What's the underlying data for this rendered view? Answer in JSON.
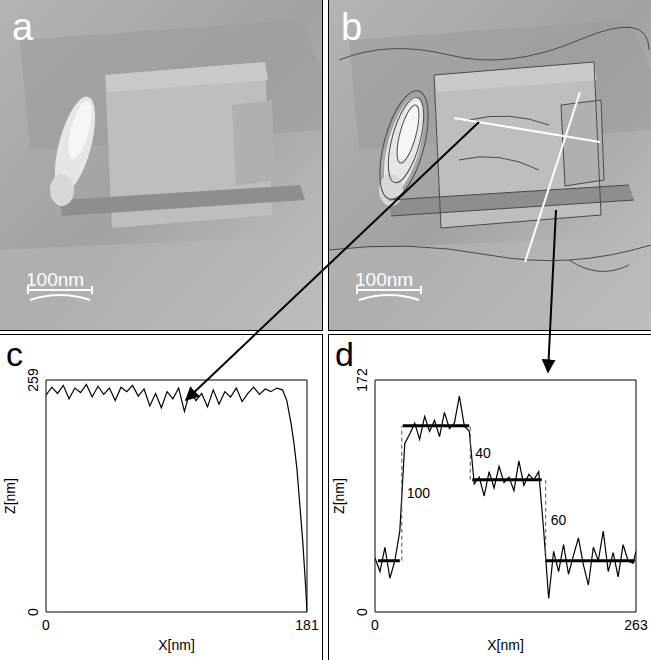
{
  "images": [
    {
      "label": "a",
      "scale_bar": "100nm"
    },
    {
      "label": "b",
      "scale_bar": "100nm"
    }
  ],
  "chart_data": [
    {
      "type": "line",
      "label": "c",
      "x_label": "X[nm]",
      "y_label": "Z[nm]",
      "xlim": [
        0,
        181
      ],
      "xticks": [
        0,
        181
      ],
      "ylim": [
        0,
        259
      ],
      "yticks": [
        0,
        259
      ],
      "color": "#000000",
      "x": [
        0,
        4,
        8,
        12,
        16,
        20,
        24,
        28,
        32,
        36,
        40,
        44,
        48,
        52,
        56,
        60,
        64,
        68,
        72,
        76,
        80,
        84,
        88,
        92,
        96,
        100,
        104,
        108,
        112,
        116,
        120,
        124,
        128,
        132,
        136,
        140,
        144,
        148,
        152,
        156,
        160,
        164,
        167,
        170,
        172,
        174,
        176,
        178,
        180,
        181
      ],
      "values": [
        242,
        251,
        244,
        253,
        238,
        250,
        245,
        254,
        240,
        252,
        243,
        250,
        236,
        251,
        246,
        253,
        241,
        249,
        230,
        244,
        228,
        246,
        238,
        250,
        224,
        247,
        236,
        244,
        229,
        248,
        232,
        246,
        240,
        250,
        235,
        244,
        251,
        243,
        249,
        246,
        250,
        248,
        236,
        210,
        188,
        160,
        120,
        80,
        30,
        0
      ]
    },
    {
      "type": "line",
      "label": "d",
      "x_label": "X[nm]",
      "y_label": "Z[nm]",
      "xlim": [
        0,
        263
      ],
      "xticks": [
        0,
        263
      ],
      "ylim": [
        0,
        172
      ],
      "yticks": [
        0,
        172
      ],
      "color": "#000000",
      "x": [
        0,
        5,
        10,
        15,
        20,
        25,
        30,
        35,
        40,
        45,
        50,
        55,
        60,
        65,
        70,
        75,
        80,
        85,
        90,
        95,
        100,
        105,
        110,
        115,
        120,
        125,
        130,
        135,
        140,
        145,
        150,
        155,
        160,
        165,
        170,
        175,
        180,
        185,
        190,
        195,
        200,
        205,
        210,
        215,
        220,
        225,
        230,
        235,
        240,
        245,
        250,
        255,
        260,
        263
      ],
      "values": [
        40,
        30,
        48,
        25,
        38,
        60,
        125,
        132,
        140,
        128,
        145,
        134,
        142,
        130,
        148,
        136,
        140,
        160,
        138,
        134,
        95,
        100,
        86,
        104,
        92,
        108,
        96,
        100,
        90,
        112,
        94,
        102,
        98,
        104,
        60,
        10,
        45,
        30,
        50,
        28,
        42,
        55,
        35,
        20,
        48,
        38,
        60,
        30,
        44,
        26,
        50,
        38,
        36,
        45
      ],
      "levels": [
        {
          "x": [
            3,
            25
          ],
          "value": 38
        },
        {
          "x": [
            28,
            95
          ],
          "value": 138
        },
        {
          "x": [
            98,
            168
          ],
          "value": 98
        },
        {
          "x": [
            172,
            262
          ],
          "value": 38
        }
      ],
      "steps": [
        {
          "x": 27,
          "from": 38,
          "to": 138,
          "value": 100
        },
        {
          "x": 96,
          "from": 98,
          "to": 138,
          "value": 40
        },
        {
          "x": 172,
          "from": 38,
          "to": 98,
          "value": 60
        }
      ]
    }
  ]
}
